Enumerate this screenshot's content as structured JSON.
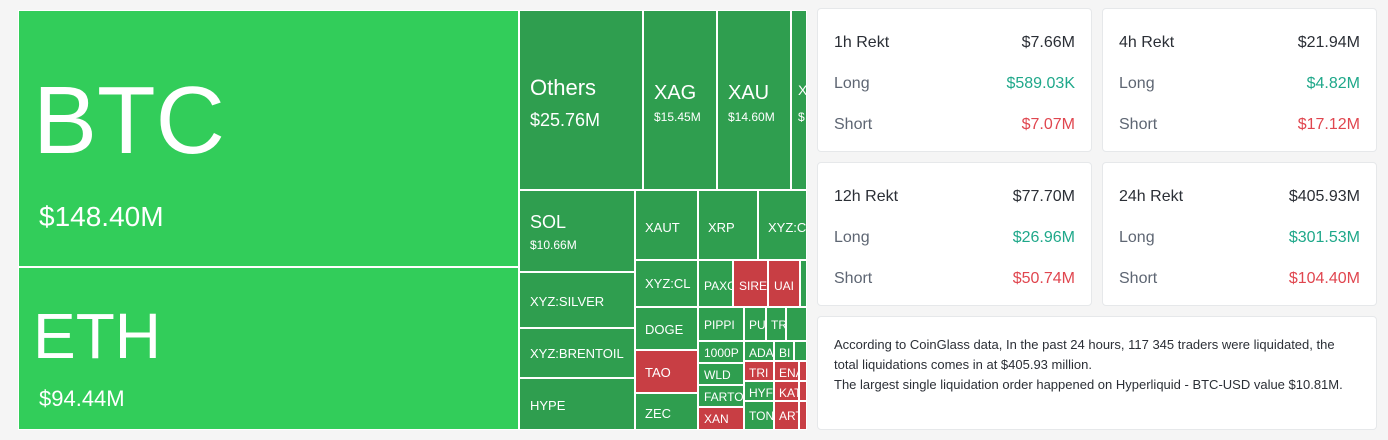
{
  "treemap": {
    "tiles": [
      {
        "symbol": "BTC",
        "value": "$148.40M",
        "color": "#32cd5a"
      },
      {
        "symbol": "ETH",
        "value": "$94.44M",
        "color": "#32cd5a"
      },
      {
        "symbol": "Others",
        "value": "$25.76M",
        "color": "#2f9e4f"
      },
      {
        "symbol": "XAG",
        "value": "$15.45M",
        "color": "#2f9e4f"
      },
      {
        "symbol": "XAU",
        "value": "$14.60M",
        "color": "#2f9e4f"
      },
      {
        "symbol": "X",
        "value": "$",
        "color": "#2f9e4f"
      },
      {
        "symbol": "SOL",
        "value": "$10.66M",
        "color": "#2f9e4f"
      },
      {
        "symbol": "XAUT",
        "value": "",
        "color": "#2f9e4f"
      },
      {
        "symbol": "XRP",
        "value": "",
        "color": "#2f9e4f"
      },
      {
        "symbol": "XYZ:CO",
        "value": "",
        "color": "#2f9e4f"
      },
      {
        "symbol": "XYZ:SILVER",
        "value": "",
        "color": "#2f9e4f"
      },
      {
        "symbol": "XYZ:CL",
        "value": "",
        "color": "#2f9e4f"
      },
      {
        "symbol": "PAXG",
        "value": "",
        "color": "#2f9e4f"
      },
      {
        "symbol": "SIRE",
        "value": "",
        "color": "#c83e44"
      },
      {
        "symbol": "UAI",
        "value": "",
        "color": "#c83e44"
      },
      {
        "symbol": "",
        "value": "",
        "color": "#2f9e4f"
      },
      {
        "symbol": "XYZ:BRENTOIL",
        "value": "",
        "color": "#2f9e4f"
      },
      {
        "symbol": "DOGE",
        "value": "",
        "color": "#2f9e4f"
      },
      {
        "symbol": "PIPPI",
        "value": "",
        "color": "#2f9e4f"
      },
      {
        "symbol": "PU",
        "value": "",
        "color": "#2f9e4f"
      },
      {
        "symbol": "TR",
        "value": "",
        "color": "#2f9e4f"
      },
      {
        "symbol": "",
        "value": "",
        "color": "#2f9e4f"
      },
      {
        "symbol": "1000P",
        "value": "",
        "color": "#2f9e4f"
      },
      {
        "symbol": "ADA",
        "value": "",
        "color": "#2f9e4f"
      },
      {
        "symbol": "BI",
        "value": "",
        "color": "#2f9e4f"
      },
      {
        "symbol": "",
        "value": "",
        "color": "#2f9e4f"
      },
      {
        "symbol": "TAO",
        "value": "",
        "color": "#c83e44"
      },
      {
        "symbol": "WLD",
        "value": "",
        "color": "#2f9e4f"
      },
      {
        "symbol": "TRI",
        "value": "",
        "color": "#c83e44"
      },
      {
        "symbol": "ENA",
        "value": "",
        "color": "#c83e44"
      },
      {
        "symbol": "",
        "value": "",
        "color": "#c83e44"
      },
      {
        "symbol": "HYPE",
        "value": "",
        "color": "#2f9e4f"
      },
      {
        "symbol": "FARTO",
        "value": "",
        "color": "#2f9e4f"
      },
      {
        "symbol": "HYF",
        "value": "",
        "color": "#2f9e4f"
      },
      {
        "symbol": "KAT",
        "value": "",
        "color": "#c83e44"
      },
      {
        "symbol": "",
        "value": "",
        "color": "#c83e44"
      },
      {
        "symbol": "ZEC",
        "value": "",
        "color": "#2f9e4f"
      },
      {
        "symbol": "XAN",
        "value": "",
        "color": "#c83e44"
      },
      {
        "symbol": "TON",
        "value": "",
        "color": "#2f9e4f"
      },
      {
        "symbol": "ART",
        "value": "",
        "color": "#c83e44"
      },
      {
        "symbol": "",
        "value": "",
        "color": "#c83e44"
      }
    ]
  },
  "stats": {
    "h1": {
      "title": "1h Rekt",
      "total": "$7.66M",
      "long_label": "Long",
      "long": "$589.03K",
      "short_label": "Short",
      "short": "$7.07M"
    },
    "h4": {
      "title": "4h Rekt",
      "total": "$21.94M",
      "long_label": "Long",
      "long": "$4.82M",
      "short_label": "Short",
      "short": "$17.12M"
    },
    "h12": {
      "title": "12h Rekt",
      "total": "$77.70M",
      "long_label": "Long",
      "long": "$26.96M",
      "short_label": "Short",
      "short": "$50.74M"
    },
    "h24": {
      "title": "24h Rekt",
      "total": "$405.93M",
      "long_label": "Long",
      "long": "$301.53M",
      "short_label": "Short",
      "short": "$104.40M"
    }
  },
  "summary": {
    "line1": "According to CoinGlass data, In the past 24 hours, 117 345 traders were liquidated, the total liquidations comes in at $405.93 million.",
    "line2": "The largest single liquidation order happened on Hyperliquid - BTC-USD value $10.81M."
  },
  "colors": {
    "long": "#1fa88a",
    "short": "#e0464f",
    "tile_green_big": "#32cd5a",
    "tile_green": "#2f9e4f",
    "tile_red": "#c83e44"
  }
}
